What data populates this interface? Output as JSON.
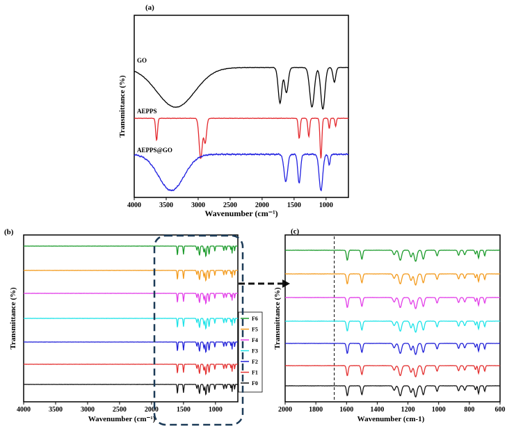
{
  "colors": {
    "go": "#000000",
    "aepps": "#e3262b",
    "aepps_go": "#1f1fe0",
    "F6": "#1a9a2a",
    "F5": "#f39a1c",
    "F4": "#e23ce8",
    "F3": "#1de3e8",
    "F2": "#2020d8",
    "F1": "#e33030",
    "F0": "#111111",
    "highlight": "#1b3a57"
  },
  "chart_data": [
    {
      "panel_label": "(a)",
      "type": "line",
      "xlabel": "Wavenumber (cm⁻¹)",
      "ylabel": "Transmittance (%)",
      "xlim": [
        4000,
        650
      ],
      "x_ticks": [
        4000,
        3500,
        3000,
        2500,
        2000,
        1500,
        1000
      ],
      "series": [
        {
          "name": "GO",
          "baseline": 0.12,
          "bands": [
            [
              3350,
              420,
              0.95
            ],
            [
              1720,
              40,
              0.85
            ],
            [
              1620,
              40,
              0.6
            ],
            [
              1220,
              50,
              0.95
            ],
            [
              1050,
              45,
              1.0
            ],
            [
              870,
              30,
              0.35
            ]
          ]
        },
        {
          "name": "AEPPS",
          "baseline": 0.12,
          "bands": [
            [
              3650,
              20,
              0.55
            ],
            [
              2960,
              35,
              1.0
            ],
            [
              2890,
              30,
              0.6
            ],
            [
              1420,
              20,
              0.5
            ],
            [
              1270,
              20,
              0.45
            ],
            [
              1080,
              20,
              1.0
            ],
            [
              950,
              15,
              0.25
            ],
            [
              850,
              15,
              0.2
            ]
          ]
        },
        {
          "name": "AEPPS@GO",
          "baseline": 0.0,
          "bands": [
            [
              3420,
              280,
              1.0
            ],
            [
              1630,
              40,
              0.75
            ],
            [
              1420,
              30,
              0.8
            ],
            [
              1080,
              40,
              1.0
            ],
            [
              950,
              20,
              0.3
            ]
          ]
        }
      ]
    },
    {
      "panel_label": "(b)",
      "type": "line",
      "xlabel": "Wavenumber (cm⁻¹)",
      "ylabel": "Transmittance (%)",
      "xlim": [
        4000,
        650
      ],
      "x_ticks": [
        4000,
        3500,
        3000,
        2500,
        2000,
        1500,
        1000
      ],
      "legend": [
        "F6",
        "F5",
        "F4",
        "F3",
        "F2",
        "F1",
        "F0"
      ],
      "legend_position": "right"
    },
    {
      "panel_label": "(c)",
      "type": "line",
      "xlabel": "Wavenumber (cm-1)",
      "ylabel": "Transmittance (%)",
      "xlim": [
        2000,
        600
      ],
      "x_ticks": [
        2000,
        1800,
        1600,
        1400,
        1200,
        1000,
        800,
        600
      ],
      "dashed_marker_x": 1680,
      "series_bands": [
        [
          1595,
          8,
          0.9
        ],
        [
          1500,
          8,
          0.8
        ],
        [
          1290,
          10,
          0.4
        ],
        [
          1250,
          12,
          0.9
        ],
        [
          1180,
          10,
          0.6
        ],
        [
          1150,
          12,
          1.0
        ],
        [
          1100,
          10,
          0.8
        ],
        [
          1010,
          8,
          0.5
        ],
        [
          870,
          8,
          0.45
        ],
        [
          830,
          8,
          0.4
        ],
        [
          760,
          6,
          0.35
        ],
        [
          740,
          6,
          0.7
        ],
        [
          700,
          6,
          0.5
        ]
      ]
    }
  ]
}
